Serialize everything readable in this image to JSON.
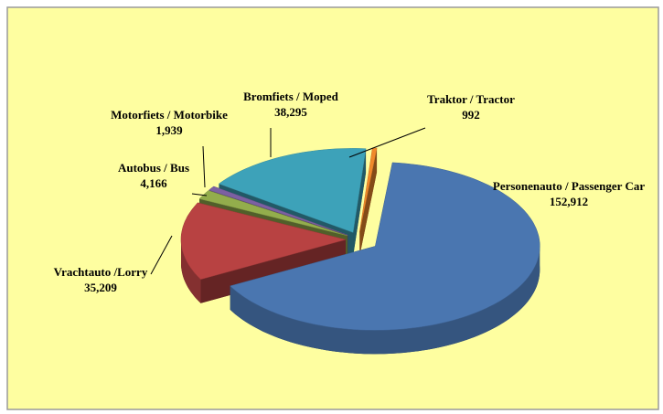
{
  "chart_data": {
    "type": "pie3d",
    "categories": [
      "Personenauto / Passenger Car",
      "Vrachtauto /Lorry",
      "Autobus / Bus",
      "Motorfiets / Motorbike",
      "Bromfiets / Moped",
      "Traktor / Tractor"
    ],
    "values": [
      152912,
      35209,
      4166,
      1939,
      38295,
      992
    ],
    "value_labels": [
      "152,912",
      "35,209",
      "4,166",
      "1,939",
      "38,295",
      "992"
    ],
    "colors": [
      "#4a76b0",
      "#b84242",
      "#93ad4c",
      "#7c60a2",
      "#3da2b9",
      "#f0892b"
    ]
  }
}
